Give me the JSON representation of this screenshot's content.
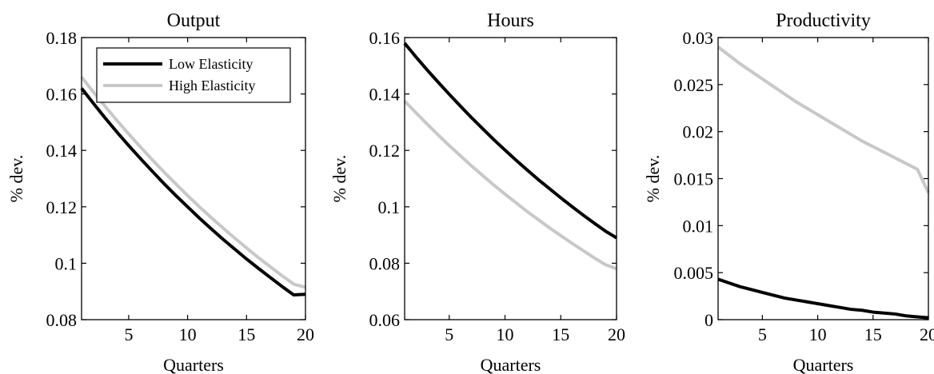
{
  "colors": {
    "low": "#000000",
    "high": "#c8c8c8",
    "axis": "#000000",
    "background": "#ffffff"
  },
  "chart_data": [
    {
      "type": "line",
      "title": "Output",
      "xlabel": "Quarters",
      "ylabel": "% dev.",
      "xlim": [
        1,
        20
      ],
      "ylim": [
        0.08,
        0.18
      ],
      "xticks": [
        5,
        10,
        15,
        20
      ],
      "xtick_labels": [
        "5",
        "10",
        "15",
        "20"
      ],
      "yticks": [
        0.08,
        0.1,
        0.12,
        0.14,
        0.16,
        0.18
      ],
      "ytick_labels": [
        "0.08",
        "0.1",
        "0.12",
        "0.14",
        "0.16",
        "0.18"
      ],
      "grid": false,
      "legend": {
        "placement": "top-right",
        "entries": [
          "Low Elasticity",
          "High Elasticity"
        ]
      },
      "x": [
        1,
        2,
        3,
        4,
        5,
        6,
        7,
        8,
        9,
        10,
        11,
        12,
        13,
        14,
        15,
        16,
        17,
        18,
        19,
        20
      ],
      "series": [
        {
          "name": "Low Elasticity",
          "color": "#000000",
          "values": [
            0.162,
            0.1567,
            0.1515,
            0.1465,
            0.1417,
            0.1371,
            0.1326,
            0.1282,
            0.124,
            0.12,
            0.116,
            0.1122,
            0.1085,
            0.105,
            0.1015,
            0.0982,
            0.095,
            0.0918,
            0.0888,
            0.089
          ]
        },
        {
          "name": "High Elasticity",
          "color": "#c8c8c8",
          "values": [
            0.166,
            0.1607,
            0.1556,
            0.1506,
            0.1458,
            0.1412,
            0.1367,
            0.1323,
            0.1281,
            0.124,
            0.12,
            0.1162,
            0.1125,
            0.1089,
            0.1054,
            0.102,
            0.0988,
            0.0956,
            0.0926,
            0.0915
          ]
        }
      ]
    },
    {
      "type": "line",
      "title": "Hours",
      "xlabel": "Quarters",
      "ylabel": "% dev.",
      "xlim": [
        1,
        20
      ],
      "ylim": [
        0.06,
        0.16
      ],
      "xticks": [
        5,
        10,
        15,
        20
      ],
      "xtick_labels": [
        "5",
        "10",
        "15",
        "20"
      ],
      "yticks": [
        0.06,
        0.08,
        0.1,
        0.12,
        0.14,
        0.16
      ],
      "ytick_labels": [
        "0.06",
        "0.08",
        "0.1",
        "0.12",
        "0.14",
        "0.16"
      ],
      "grid": false,
      "x": [
        1,
        2,
        3,
        4,
        5,
        6,
        7,
        8,
        9,
        10,
        11,
        12,
        13,
        14,
        15,
        16,
        17,
        18,
        19,
        20
      ],
      "series": [
        {
          "name": "Low Elasticity",
          "color": "#000000",
          "values": [
            0.158,
            0.1532,
            0.1486,
            0.1442,
            0.1399,
            0.1357,
            0.1316,
            0.1277,
            0.1238,
            0.1201,
            0.1165,
            0.113,
            0.1096,
            0.1064,
            0.1032,
            0.1001,
            0.0971,
            0.0942,
            0.0914,
            0.089
          ]
        },
        {
          "name": "High Elasticity",
          "color": "#c8c8c8",
          "values": [
            0.1375,
            0.1334,
            0.1294,
            0.1255,
            0.1217,
            0.1181,
            0.1145,
            0.1111,
            0.1077,
            0.1045,
            0.1014,
            0.0983,
            0.0954,
            0.0925,
            0.0898,
            0.0871,
            0.0845,
            0.0819,
            0.0795,
            0.078
          ]
        }
      ]
    },
    {
      "type": "line",
      "title": "Productivity",
      "xlabel": "Quarters",
      "ylabel": "% dev.",
      "xlim": [
        1,
        20
      ],
      "ylim": [
        0,
        0.03
      ],
      "xticks": [
        5,
        10,
        15,
        20
      ],
      "xtick_labels": [
        "5",
        "10",
        "15",
        "20"
      ],
      "yticks": [
        0,
        0.005,
        0.01,
        0.015,
        0.02,
        0.025,
        0.03
      ],
      "ytick_labels": [
        "0",
        "0.005",
        "0.01",
        "0.015",
        "0.02",
        "0.025",
        "0.03"
      ],
      "grid": false,
      "x": [
        1,
        2,
        3,
        4,
        5,
        6,
        7,
        8,
        9,
        10,
        11,
        12,
        13,
        14,
        15,
        16,
        17,
        18,
        19,
        20
      ],
      "series": [
        {
          "name": "Low Elasticity",
          "color": "#000000",
          "values": [
            0.0043,
            0.0039,
            0.0035,
            0.0032,
            0.0029,
            0.0026,
            0.0023,
            0.0021,
            0.0019,
            0.0017,
            0.0015,
            0.0013,
            0.0011,
            0.001,
            0.0008,
            0.0007,
            0.0006,
            0.0004,
            0.0003,
            0.0002
          ]
        },
        {
          "name": "High Elasticity",
          "color": "#c8c8c8",
          "values": [
            0.029,
            0.0281,
            0.0272,
            0.0264,
            0.0256,
            0.0248,
            0.024,
            0.0232,
            0.0225,
            0.0218,
            0.0211,
            0.0204,
            0.0197,
            0.019,
            0.0184,
            0.0178,
            0.0172,
            0.0166,
            0.016,
            0.0135
          ]
        }
      ]
    }
  ]
}
